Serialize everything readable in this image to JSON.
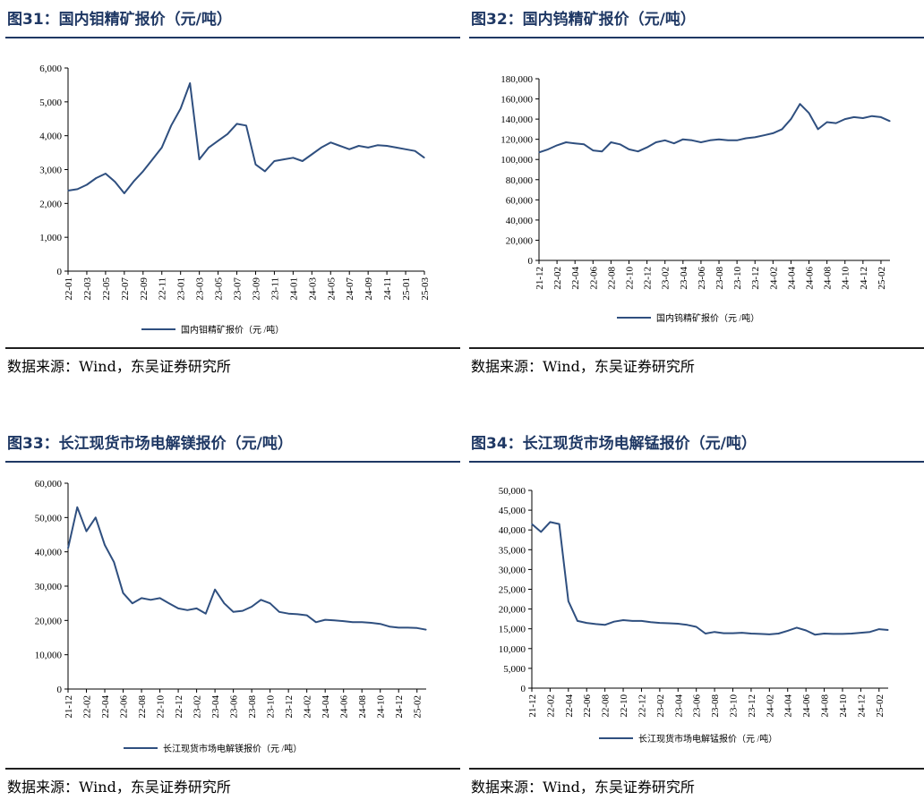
{
  "panels": [
    {
      "title": "图31：国内钼精矿报价（元/吨）",
      "source": "数据来源：Wind，东吴证券研究所",
      "legend": "国内钼精矿报价（元 /吨）"
    },
    {
      "title": "图32：国内钨精矿报价（元/吨）",
      "source": "数据来源：Wind，东吴证券研究所",
      "legend": "国内钨精矿报价（元 /吨）"
    },
    {
      "title": "图33：长江现货市场电解镁报价（元/吨）",
      "source": "数据来源：Wind，东吴证券研究所",
      "legend": "长江现货市场电解镁报价（元 /吨）"
    },
    {
      "title": "图34：长江现货市场电解锰报价（元/吨）",
      "source": "数据来源：Wind，东吴证券研究所",
      "legend": "长江现货市场电解锰报价（元 /吨）"
    }
  ],
  "colors": {
    "line": "#2f4f7f",
    "title": "#1f3864",
    "axis": "#000000"
  },
  "chart_data": [
    {
      "type": "line",
      "title": "图31：国内钼精矿报价（元/吨）",
      "series": [
        {
          "name": "国内钼精矿报价（元 /吨）",
          "points": [
            [
              "2022-01",
              2380
            ],
            [
              "2022-02",
              2420
            ],
            [
              "2022-03",
              2550
            ],
            [
              "2022-04",
              2750
            ],
            [
              "2022-05",
              2880
            ],
            [
              "2022-06",
              2640
            ],
            [
              "2022-07",
              2300
            ],
            [
              "2022-08",
              2650
            ],
            [
              "2022-09",
              2950
            ],
            [
              "2022-10",
              3300
            ],
            [
              "2022-11",
              3650
            ],
            [
              "2022-12",
              4300
            ],
            [
              "2023-01",
              4800
            ],
            [
              "2023-02",
              5550
            ],
            [
              "2023-03",
              3300
            ],
            [
              "2023-04",
              3650
            ],
            [
              "2023-05",
              3850
            ],
            [
              "2023-06",
              4050
            ],
            [
              "2023-07",
              4350
            ],
            [
              "2023-08",
              4300
            ],
            [
              "2023-09",
              3150
            ],
            [
              "2023-10",
              2950
            ],
            [
              "2023-11",
              3250
            ],
            [
              "2023-12",
              3300
            ],
            [
              "2024-01",
              3350
            ],
            [
              "2024-02",
              3250
            ],
            [
              "2024-03",
              3450
            ],
            [
              "2024-04",
              3650
            ],
            [
              "2024-05",
              3800
            ],
            [
              "2024-06",
              3700
            ],
            [
              "2024-07",
              3600
            ],
            [
              "2024-08",
              3700
            ],
            [
              "2024-09",
              3650
            ],
            [
              "2024-10",
              3720
            ],
            [
              "2024-11",
              3700
            ],
            [
              "2024-12",
              3650
            ],
            [
              "2025-01",
              3600
            ],
            [
              "2025-02",
              3550
            ],
            [
              "2025-03",
              3350
            ]
          ]
        }
      ],
      "x_ticks": [
        "22-01",
        "22-03",
        "22-05",
        "22-07",
        "22-09",
        "22-11",
        "23-01",
        "23-03",
        "23-05",
        "23-07",
        "23-09",
        "23-11",
        "24-01",
        "24-03",
        "24-05",
        "24-07",
        "24-09",
        "24-11",
        "25-01",
        "25-03"
      ],
      "y_ticks": [
        "0",
        "1,000",
        "2,000",
        "3,000",
        "4,000",
        "5,000",
        "6,000"
      ],
      "ylim": [
        0,
        6000
      ],
      "grid": false,
      "legend_position": "bottom"
    },
    {
      "type": "line",
      "title": "图32：国内钨精矿报价（元/吨）",
      "series": [
        {
          "name": "国内钨精矿报价（元 /吨）",
          "points": [
            [
              "2021-12",
              107000
            ],
            [
              "2022-01",
              110000
            ],
            [
              "2022-02",
              114000
            ],
            [
              "2022-03",
              117000
            ],
            [
              "2022-04",
              116000
            ],
            [
              "2022-05",
              115000
            ],
            [
              "2022-06",
              109000
            ],
            [
              "2022-07",
              108000
            ],
            [
              "2022-08",
              117000
            ],
            [
              "2022-09",
              115000
            ],
            [
              "2022-10",
              110000
            ],
            [
              "2022-11",
              108000
            ],
            [
              "2022-12",
              112000
            ],
            [
              "2023-01",
              117000
            ],
            [
              "2023-02",
              119000
            ],
            [
              "2023-03",
              116000
            ],
            [
              "2023-04",
              120000
            ],
            [
              "2023-05",
              119000
            ],
            [
              "2023-06",
              117000
            ],
            [
              "2023-07",
              119000
            ],
            [
              "2023-08",
              120000
            ],
            [
              "2023-09",
              119000
            ],
            [
              "2023-10",
              119000
            ],
            [
              "2023-11",
              121000
            ],
            [
              "2023-12",
              122000
            ],
            [
              "2024-01",
              124000
            ],
            [
              "2024-02",
              126000
            ],
            [
              "2024-03",
              130000
            ],
            [
              "2024-04",
              140000
            ],
            [
              "2024-05",
              155000
            ],
            [
              "2024-06",
              146000
            ],
            [
              "2024-07",
              130000
            ],
            [
              "2024-08",
              137000
            ],
            [
              "2024-09",
              136000
            ],
            [
              "2024-10",
              140000
            ],
            [
              "2024-11",
              142000
            ],
            [
              "2024-12",
              141000
            ],
            [
              "2025-01",
              143000
            ],
            [
              "2025-02",
              142000
            ],
            [
              "2025-03",
              138000
            ]
          ]
        }
      ],
      "x_ticks": [
        "21-12",
        "22-02",
        "22-04",
        "22-06",
        "22-08",
        "22-10",
        "22-12",
        "23-02",
        "23-04",
        "23-06",
        "23-08",
        "23-10",
        "23-12",
        "24-02",
        "24-04",
        "24-06",
        "24-08",
        "24-10",
        "24-12",
        "25-02"
      ],
      "y_ticks": [
        "0",
        "20,000",
        "40,000",
        "60,000",
        "80,000",
        "100,000",
        "120,000",
        "140,000",
        "160,000",
        "180,000"
      ],
      "ylim": [
        0,
        180000
      ],
      "grid": false,
      "legend_position": "bottom"
    },
    {
      "type": "line",
      "title": "图33：长江现货市场电解镁报价（元/吨）",
      "series": [
        {
          "name": "长江现货市场电解镁报价（元 /吨）",
          "points": [
            [
              "2021-12",
              41000
            ],
            [
              "2022-01",
              53000
            ],
            [
              "2022-02",
              46000
            ],
            [
              "2022-03",
              50000
            ],
            [
              "2022-04",
              42000
            ],
            [
              "2022-05",
              37000
            ],
            [
              "2022-06",
              28000
            ],
            [
              "2022-07",
              25000
            ],
            [
              "2022-08",
              26500
            ],
            [
              "2022-09",
              26000
            ],
            [
              "2022-10",
              26500
            ],
            [
              "2022-11",
              25000
            ],
            [
              "2022-12",
              23500
            ],
            [
              "2023-01",
              23000
            ],
            [
              "2023-02",
              23500
            ],
            [
              "2023-03",
              22000
            ],
            [
              "2023-04",
              29000
            ],
            [
              "2023-05",
              25000
            ],
            [
              "2023-06",
              22500
            ],
            [
              "2023-07",
              22800
            ],
            [
              "2023-08",
              24000
            ],
            [
              "2023-09",
              26000
            ],
            [
              "2023-10",
              25000
            ],
            [
              "2023-11",
              22500
            ],
            [
              "2023-12",
              22000
            ],
            [
              "2024-01",
              21800
            ],
            [
              "2024-02",
              21500
            ],
            [
              "2024-03",
              19500
            ],
            [
              "2024-04",
              20200
            ],
            [
              "2024-05",
              20000
            ],
            [
              "2024-06",
              19800
            ],
            [
              "2024-07",
              19500
            ],
            [
              "2024-08",
              19500
            ],
            [
              "2024-09",
              19300
            ],
            [
              "2024-10",
              19000
            ],
            [
              "2024-11",
              18200
            ],
            [
              "2024-12",
              17900
            ],
            [
              "2025-01",
              17900
            ],
            [
              "2025-02",
              17800
            ],
            [
              "2025-03",
              17300
            ]
          ]
        }
      ],
      "x_ticks": [
        "21-12",
        "22-02",
        "22-04",
        "22-06",
        "22-08",
        "22-10",
        "22-12",
        "23-02",
        "23-04",
        "23-06",
        "23-08",
        "23-10",
        "23-12",
        "24-02",
        "24-04",
        "24-06",
        "24-08",
        "24-10",
        "24-12",
        "25-02"
      ],
      "y_ticks": [
        "0",
        "10,000",
        "20,000",
        "30,000",
        "40,000",
        "50,000",
        "60,000"
      ],
      "ylim": [
        0,
        60000
      ],
      "grid": false,
      "legend_position": "bottom"
    },
    {
      "type": "line",
      "title": "图34：长江现货市场电解锰报价（元/吨）",
      "series": [
        {
          "name": "长江现货市场电解锰报价（元 /吨）",
          "points": [
            [
              "2021-12",
              41500
            ],
            [
              "2022-01",
              39500
            ],
            [
              "2022-02",
              42000
            ],
            [
              "2022-03",
              41500
            ],
            [
              "2022-04",
              22000
            ],
            [
              "2022-05",
              17000
            ],
            [
              "2022-06",
              16500
            ],
            [
              "2022-07",
              16200
            ],
            [
              "2022-08",
              16000
            ],
            [
              "2022-09",
              16800
            ],
            [
              "2022-10",
              17200
            ],
            [
              "2022-11",
              17000
            ],
            [
              "2022-12",
              17000
            ],
            [
              "2023-01",
              16700
            ],
            [
              "2023-02",
              16500
            ],
            [
              "2023-03",
              16400
            ],
            [
              "2023-04",
              16300
            ],
            [
              "2023-05",
              16000
            ],
            [
              "2023-06",
              15500
            ],
            [
              "2023-07",
              13800
            ],
            [
              "2023-08",
              14200
            ],
            [
              "2023-09",
              13900
            ],
            [
              "2023-10",
              13900
            ],
            [
              "2023-11",
              14000
            ],
            [
              "2023-12",
              13800
            ],
            [
              "2024-01",
              13700
            ],
            [
              "2024-02",
              13600
            ],
            [
              "2024-03",
              13800
            ],
            [
              "2024-04",
              14500
            ],
            [
              "2024-05",
              15300
            ],
            [
              "2024-06",
              14600
            ],
            [
              "2024-07",
              13500
            ],
            [
              "2024-08",
              13800
            ],
            [
              "2024-09",
              13700
            ],
            [
              "2024-10",
              13700
            ],
            [
              "2024-11",
              13800
            ],
            [
              "2024-12",
              14000
            ],
            [
              "2025-01",
              14200
            ],
            [
              "2025-02",
              14900
            ],
            [
              "2025-03",
              14700
            ]
          ]
        }
      ],
      "x_ticks": [
        "21-12",
        "22-02",
        "22-04",
        "22-06",
        "22-08",
        "22-10",
        "22-12",
        "23-02",
        "23-04",
        "23-06",
        "23-08",
        "23-10",
        "23-12",
        "24-02",
        "24-04",
        "24-06",
        "24-08",
        "24-10",
        "24-12",
        "25-02"
      ],
      "y_ticks": [
        "0",
        "5,000",
        "10,000",
        "15,000",
        "20,000",
        "25,000",
        "30,000",
        "35,000",
        "40,000",
        "45,000",
        "50,000"
      ],
      "ylim": [
        0,
        50000
      ],
      "grid": false,
      "legend_position": "bottom"
    }
  ]
}
